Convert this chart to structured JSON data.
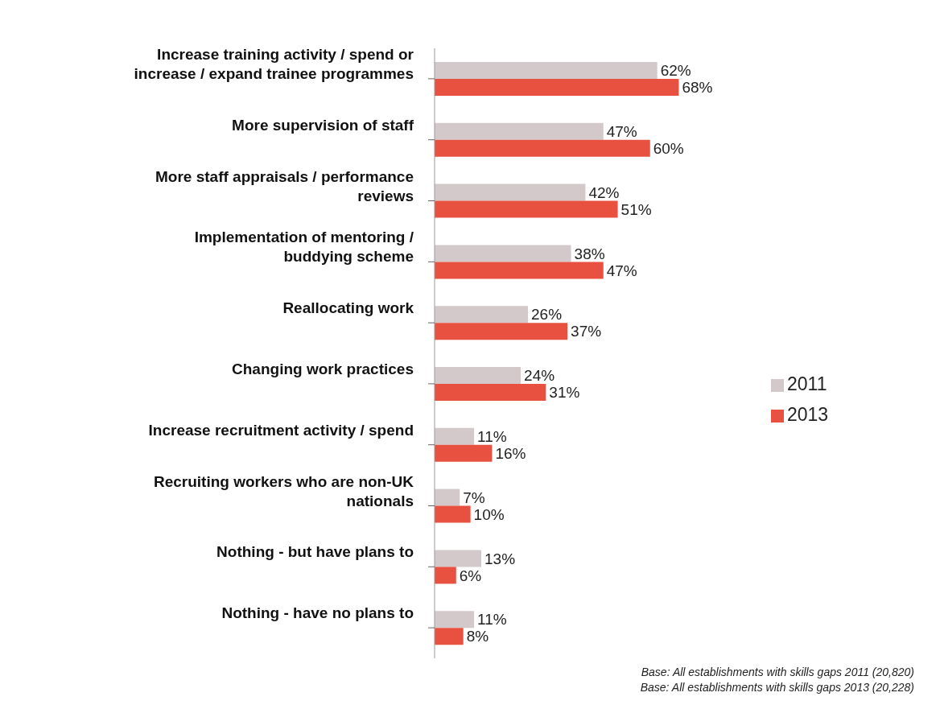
{
  "chart_data": {
    "type": "bar",
    "orientation": "horizontal",
    "categories": [
      "Increase training activity / spend or increase / expand trainee programmes",
      "More supervision of staff",
      "More staff appraisals / performance reviews",
      "Implementation of mentoring / buddying scheme",
      "Reallocating work",
      "Changing work practices",
      "Increase recruitment activity / spend",
      "Recruiting workers who are non-UK nationals",
      "Nothing - but have plans to",
      "Nothing - have no plans to"
    ],
    "series": [
      {
        "name": "2011",
        "color": "#d3c9ca",
        "values": [
          62,
          47,
          42,
          38,
          26,
          24,
          11,
          7,
          13,
          11
        ],
        "value_labels": [
          "62%",
          "47%",
          "42%",
          "38%",
          "26%",
          "24%",
          "11%",
          "7%",
          "13%",
          "11%"
        ]
      },
      {
        "name": "2013",
        "color": "#e8503f",
        "values": [
          68,
          60,
          51,
          47,
          37,
          31,
          16,
          10,
          6,
          8
        ],
        "value_labels": [
          "68%",
          "60%",
          "51%",
          "47%",
          "37%",
          "31%",
          "16%",
          "10%",
          "6%",
          "8%"
        ]
      }
    ],
    "legend": "right",
    "grid": false,
    "annotations": [
      "Base: All establishments with  skills gaps 2011 (20,820)",
      "Base: All establishments with  skills gaps 2013 (20,228)"
    ]
  }
}
